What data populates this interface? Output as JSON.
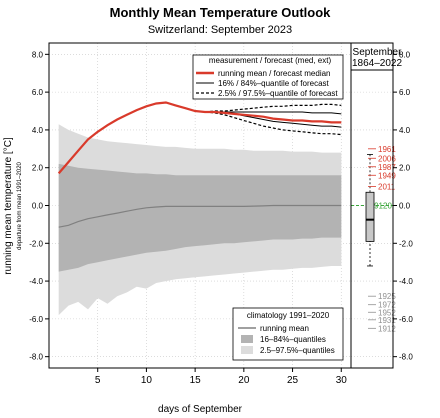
{
  "chart_data": {
    "type": "line",
    "title": "Monthly Mean Temperature Outlook",
    "subtitle": "Switzerland: September 2023",
    "xlabel": "days of September",
    "ylabel": "running mean temperature [°C]",
    "ylabel_sub": "departure from mean 1991–2020",
    "xlim": [
      0,
      31
    ],
    "ylim": [
      -8.6,
      8.6
    ],
    "x_ticks": [
      5,
      10,
      15,
      20,
      25,
      30
    ],
    "y_ticks": [
      -8,
      -6,
      -4,
      -2,
      0,
      2,
      4,
      6,
      8
    ],
    "y_tick_labels": [
      "-8.0",
      "-6.0",
      "-4.0",
      "-2.0",
      "0.0",
      "2.0",
      "4.0",
      "6.0",
      "8.0"
    ],
    "y_tick_labels_right": [
      "-8.0",
      "-6.0",
      "-4.0",
      "-2.0",
      "0.0",
      "2.0",
      "4.0",
      "6.0",
      "8.0"
    ],
    "grid": true,
    "legend_top": {
      "title": "measurement / forecast (med, ext)",
      "entries": [
        "running mean / forecast median",
        "16% / 84%–quantile of forecast",
        "2.5% / 97.5%–quantile of forecast"
      ]
    },
    "legend_bottom": {
      "title": "climatology 1991–2020",
      "entries": [
        "running mean",
        "16–84%–quantiles",
        "2.5–97.5%–quantiles"
      ]
    },
    "series": [
      {
        "name": "running mean / forecast median",
        "color": "#d93a2b",
        "x": [
          1,
          2,
          3,
          4,
          5,
          6,
          7,
          8,
          9,
          10,
          11,
          12,
          13,
          14,
          15,
          16,
          17,
          18,
          19,
          20,
          21,
          22,
          23,
          24,
          25,
          26,
          27,
          28,
          29,
          30
        ],
        "y": [
          1.7,
          2.3,
          2.9,
          3.5,
          3.9,
          4.25,
          4.55,
          4.8,
          5.05,
          5.25,
          5.4,
          5.45,
          5.3,
          5.15,
          5.0,
          4.95,
          4.95,
          4.9,
          4.85,
          4.8,
          4.75,
          4.7,
          4.6,
          4.55,
          4.5,
          4.5,
          4.45,
          4.45,
          4.4,
          4.4
        ]
      },
      {
        "name": "16% / 84%–quantile of forecast",
        "style": "solid-thin",
        "x": [
          17,
          18,
          19,
          20,
          21,
          22,
          23,
          24,
          25,
          26,
          27,
          28,
          29,
          30
        ],
        "upper": [
          4.95,
          4.95,
          4.95,
          4.95,
          4.95,
          4.95,
          4.95,
          4.95,
          4.95,
          4.95,
          4.9,
          4.9,
          4.9,
          4.85
        ],
        "lower": [
          4.95,
          4.9,
          4.85,
          4.75,
          4.65,
          4.55,
          4.45,
          4.4,
          4.35,
          4.3,
          4.25,
          4.2,
          4.2,
          4.15
        ]
      },
      {
        "name": "2.5% / 97.5%–quantile of forecast",
        "style": "dashed",
        "x": [
          16,
          17,
          18,
          19,
          20,
          21,
          22,
          23,
          24,
          25,
          26,
          27,
          28,
          29,
          30
        ],
        "upper": [
          4.95,
          5.0,
          5.0,
          5.05,
          5.1,
          5.15,
          5.2,
          5.25,
          5.25,
          5.3,
          5.3,
          5.3,
          5.35,
          5.35,
          5.3
        ],
        "lower": [
          4.95,
          4.9,
          4.8,
          4.65,
          4.5,
          4.35,
          4.2,
          4.1,
          4.0,
          3.95,
          3.9,
          3.85,
          3.8,
          3.8,
          3.75
        ]
      },
      {
        "name": "climatology running mean",
        "color": "#808080",
        "x": [
          1,
          2,
          3,
          4,
          5,
          6,
          7,
          8,
          9,
          10,
          11,
          12,
          13,
          14,
          15,
          16,
          17,
          18,
          19,
          20,
          21,
          22,
          23,
          24,
          25,
          26,
          27,
          28,
          29,
          30
        ],
        "y": [
          -1.15,
          -1.05,
          -0.85,
          -0.7,
          -0.6,
          -0.5,
          -0.4,
          -0.3,
          -0.2,
          -0.12,
          -0.08,
          -0.05,
          -0.05,
          -0.05,
          -0.05,
          -0.05,
          -0.05,
          -0.05,
          -0.05,
          -0.05,
          -0.03,
          -0.02,
          0.0,
          0.0,
          0.0,
          0.0,
          0.0,
          0.0,
          0.0,
          0.0
        ]
      }
    ],
    "climatology_bands": {
      "x": [
        1,
        2,
        3,
        4,
        5,
        6,
        7,
        8,
        9,
        10,
        11,
        12,
        13,
        14,
        15,
        16,
        17,
        18,
        19,
        20,
        21,
        22,
        23,
        24,
        25,
        26,
        27,
        28,
        29,
        30
      ],
      "q16": [
        -3.5,
        -3.4,
        -3.3,
        -3.1,
        -3.0,
        -2.9,
        -2.8,
        -2.7,
        -2.6,
        -2.5,
        -2.45,
        -2.4,
        -2.3,
        -2.2,
        -2.15,
        -2.1,
        -2.05,
        -2.0,
        -2.0,
        -1.95,
        -1.9,
        -1.85,
        -1.8,
        -1.8,
        -1.8,
        -1.75,
        -1.75,
        -1.7,
        -1.7,
        -1.7
      ],
      "q84": [
        2.2,
        2.1,
        2.0,
        1.95,
        1.9,
        1.85,
        1.8,
        1.75,
        1.7,
        1.7,
        1.65,
        1.65,
        1.6,
        1.6,
        1.6,
        1.6,
        1.6,
        1.6,
        1.6,
        1.6,
        1.6,
        1.6,
        1.6,
        1.6,
        1.6,
        1.6,
        1.6,
        1.6,
        1.6,
        1.6
      ],
      "q025": [
        -5.8,
        -5.3,
        -5.1,
        -5.5,
        -4.9,
        -5.2,
        -4.8,
        -4.6,
        -4.3,
        -4.4,
        -4.1,
        -4.0,
        -3.9,
        -3.85,
        -3.8,
        -3.75,
        -3.7,
        -3.65,
        -3.6,
        -3.55,
        -3.5,
        -3.45,
        -3.4,
        -3.4,
        -3.35,
        -3.3,
        -3.3,
        -3.25,
        -3.2,
        -3.2
      ],
      "q975": [
        4.3,
        4.0,
        3.8,
        3.6,
        3.5,
        3.4,
        3.35,
        3.3,
        3.25,
        3.2,
        3.15,
        3.1,
        3.1,
        3.05,
        3.0,
        3.0,
        3.0,
        3.0,
        2.95,
        2.95,
        2.9,
        2.9,
        2.9,
        2.9,
        2.85,
        2.85,
        2.85,
        2.8,
        2.8,
        2.8
      ]
    },
    "side_panel": {
      "title_line1": "September",
      "title_line2": "1864–2022",
      "median_value_label": "9120",
      "box_q25": -1.9,
      "box_q75": 0.7,
      "box_median": -0.75,
      "whisker_low": -3.2,
      "whisker_high": 2.7,
      "warm_years": [
        {
          "year": "1961",
          "value": 3.0
        },
        {
          "year": "2006",
          "value": 2.5
        },
        {
          "year": "1987",
          "value": 2.05
        },
        {
          "year": "1949",
          "value": 1.6
        },
        {
          "year": "2011",
          "value": 1.0
        }
      ],
      "cold_years": [
        {
          "year": "1925",
          "value": -4.8
        },
        {
          "year": "1972",
          "value": -5.25
        },
        {
          "year": "1952",
          "value": -5.65
        },
        {
          "year": "1931",
          "value": -6.05
        },
        {
          "year": "1912",
          "value": -6.5
        }
      ]
    }
  }
}
